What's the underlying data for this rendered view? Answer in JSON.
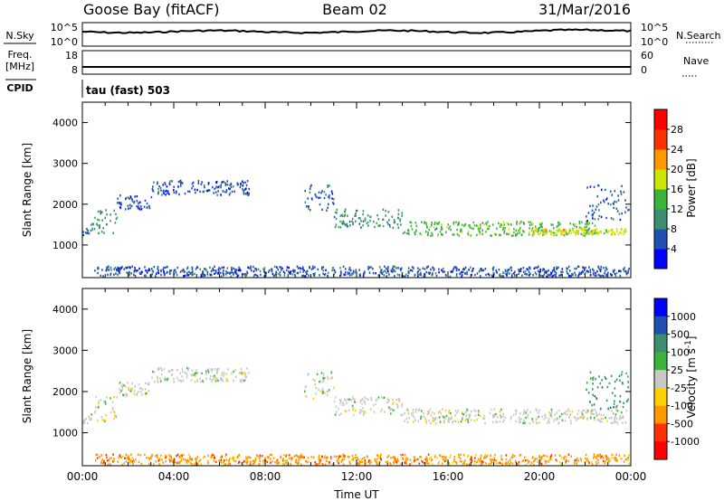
{
  "header": {
    "station": "Goose Bay (fitACF)",
    "beam": "Beam 02",
    "date": "31/Mar/2016"
  },
  "chart_data": [
    {
      "type": "line",
      "panel": "noise",
      "left_label": "N.Sky",
      "left_ticks": [
        "10^5",
        "10^0"
      ],
      "right_label": "N.Search",
      "right_ticks": [
        "10^5",
        "10^0"
      ]
    },
    {
      "type": "line",
      "panel": "frequency",
      "left_label": [
        "Freq.",
        "[MHz]"
      ],
      "left_ticks": [
        "18",
        "8"
      ],
      "right_label": "Nave",
      "right_ticks": [
        "60",
        "0"
      ]
    },
    {
      "type": "table",
      "panel": "cpid",
      "label": "CPID",
      "value": "tau (fast) 503"
    },
    {
      "type": "heatmap",
      "panel": "power",
      "ylabel": "Slant Range [km]",
      "ylim": [
        200,
        4500
      ],
      "yticks": [
        "1000",
        "2000",
        "3000",
        "4000"
      ],
      "xlim": [
        0,
        24
      ],
      "colorbar": {
        "label": "Power [dB]",
        "ticks": [
          "4",
          "8",
          "12",
          "16",
          "20",
          "24",
          "28"
        ],
        "colors": [
          "#0000ff",
          "#2050b0",
          "#3c8f6e",
          "#3cb43c",
          "#cde600",
          "#ff9900",
          "#ff3000",
          "#ff0000"
        ]
      },
      "bands": [
        {
          "t": [
            0.0,
            0.3
          ],
          "r": [
            1230,
            1420
          ],
          "c": 1
        },
        {
          "t": [
            0.3,
            1.5
          ],
          "r": [
            1300,
            1900
          ],
          "c": 2
        },
        {
          "t": [
            1.5,
            3.0
          ],
          "r": [
            1900,
            2250
          ],
          "c": 1
        },
        {
          "t": [
            3.0,
            7.3
          ],
          "r": [
            2250,
            2600
          ],
          "c": 1
        },
        {
          "t": [
            9.7,
            11.0
          ],
          "r": [
            1850,
            2500
          ],
          "c": 1
        },
        {
          "t": [
            11.0,
            14.0
          ],
          "r": [
            1450,
            1900
          ],
          "c": 2
        },
        {
          "t": [
            14.0,
            22.5
          ],
          "r": [
            1250,
            1600
          ],
          "c": 3
        },
        {
          "t": [
            19.5,
            23.8
          ],
          "r": [
            1280,
            1420
          ],
          "c": 4
        },
        {
          "t": [
            22.0,
            23.9
          ],
          "r": [
            1600,
            2500
          ],
          "c": 1
        },
        {
          "t": [
            0.5,
            23.9
          ],
          "r": [
            250,
            500
          ],
          "c": 1
        }
      ]
    },
    {
      "type": "heatmap",
      "panel": "velocity",
      "ylabel": "Slant Range [km]",
      "xlabel": "Time UT",
      "ylim": [
        200,
        4500
      ],
      "yticks": [
        "1000",
        "2000",
        "3000",
        "4000"
      ],
      "xlim": [
        0,
        24
      ],
      "xticks": [
        "00:00",
        "04:00",
        "08:00",
        "12:00",
        "16:00",
        "20:00",
        "00:00"
      ],
      "colorbar": {
        "label": "Velocity [m s^-1]",
        "ticks": [
          "1000",
          "500",
          "100",
          "25",
          "-25",
          "-100",
          "-500",
          "-1000"
        ],
        "colors": [
          "#0000ff",
          "#2050b0",
          "#3c8f6e",
          "#3cb43c",
          "#c8c8c8",
          "#ffd000",
          "#ff9900",
          "#ff3000",
          "#ff0000"
        ]
      },
      "bands": [
        {
          "t": [
            0.0,
            0.3
          ],
          "r": [
            1230,
            1420
          ],
          "c": 4
        },
        {
          "t": [
            0.3,
            1.5
          ],
          "r": [
            1300,
            1900
          ],
          "c": 4
        },
        {
          "t": [
            1.5,
            3.0
          ],
          "r": [
            1900,
            2250
          ],
          "c": 4
        },
        {
          "t": [
            3.0,
            7.3
          ],
          "r": [
            2250,
            2600
          ],
          "c": 4
        },
        {
          "t": [
            9.7,
            11.0
          ],
          "r": [
            1850,
            2500
          ],
          "c": 4
        },
        {
          "t": [
            11.0,
            14.0
          ],
          "r": [
            1450,
            1900
          ],
          "c": 4
        },
        {
          "t": [
            14.0,
            23.8
          ],
          "r": [
            1250,
            1600
          ],
          "c": 4
        },
        {
          "t": [
            22.0,
            23.9
          ],
          "r": [
            1600,
            2500
          ],
          "c": 2
        },
        {
          "t": [
            0.5,
            23.9
          ],
          "r": [
            250,
            500
          ],
          "c": 6
        }
      ]
    }
  ]
}
